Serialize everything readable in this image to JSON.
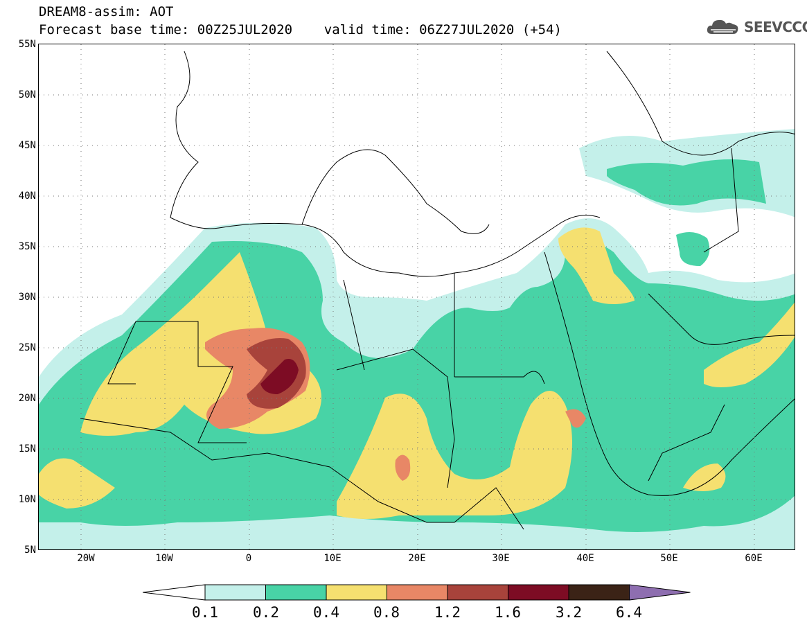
{
  "header": {
    "line1": "DREAM8-assim: AOT",
    "line2": "Forecast base time: 00Z25JUL2020    valid time: 06Z27JUL2020 (+54)",
    "logo_text": "SEEVCCC",
    "logo_icon": "cloud-icon"
  },
  "map": {
    "lon_range": [
      -25,
      65
    ],
    "lat_range": [
      5,
      55
    ],
    "lat_ticks": [
      "55N",
      "50N",
      "45N",
      "40N",
      "35N",
      "30N",
      "25N",
      "20N",
      "15N",
      "10N",
      "5N"
    ],
    "lon_ticks": [
      "20W",
      "10W",
      "0",
      "10E",
      "20E",
      "30E",
      "40E",
      "50E",
      "60E"
    ],
    "gridlines": "dotted",
    "overlay": "country borders and coastlines"
  },
  "legend": {
    "levels": [
      "0.1",
      "0.2",
      "0.4",
      "0.8",
      "1.2",
      "1.6",
      "3.2",
      "6.4"
    ],
    "colors": [
      "#ffffff",
      "#c4f0ea",
      "#48d3a6",
      "#f5e070",
      "#e88766",
      "#a8433b",
      "#7d0c24",
      "#3b2316",
      "#8e6eb0"
    ]
  }
}
